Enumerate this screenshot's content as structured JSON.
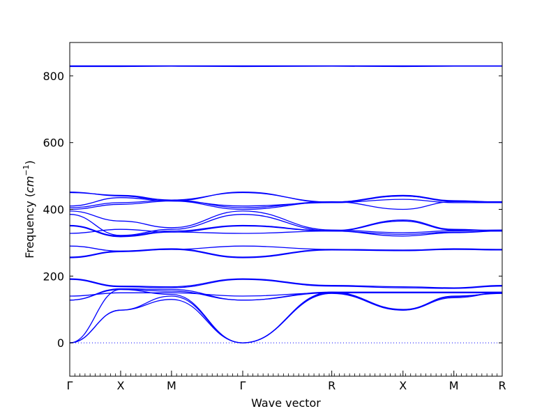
{
  "chart_data": {
    "type": "line",
    "title": "",
    "xlabel": "Wave vector",
    "ylabel": "Frequency (",
    "ylabel_math": "cm",
    "ylabel_exp": "−1",
    "ylabel_close": ")",
    "ylim": [
      -100,
      900
    ],
    "yticks": [
      0,
      200,
      400,
      600,
      800
    ],
    "ytick_labels": [
      "0",
      "200",
      "400",
      "600",
      "800"
    ],
    "xlim": [
      0,
      8.5
    ],
    "high_symmetry_points": [
      {
        "label": "Γ",
        "x": 0
      },
      {
        "label": "X",
        "x": 1
      },
      {
        "label": "M",
        "x": 2
      },
      {
        "label": "Γ",
        "x": 3.4
      },
      {
        "label": "R",
        "x": 5.15
      },
      {
        "label": "X",
        "x": 6.55
      },
      {
        "label": "M",
        "x": 7.55
      },
      {
        "label": "R",
        "x": 8.5
      }
    ],
    "zero_line": {
      "y": 0,
      "style": "dotted"
    },
    "grid": false,
    "series_color": "#0000ff",
    "series": [
      {
        "values": [
          0,
          98,
          140,
          0,
          148,
          98,
          140,
          148
        ]
      },
      {
        "values": [
          0,
          98,
          130,
          0,
          150,
          98,
          135,
          150
        ]
      },
      {
        "values": [
          0,
          160,
          145,
          0,
          152,
          100,
          138,
          150
        ]
      },
      {
        "values": [
          128,
          160,
          155,
          128,
          150,
          150,
          150,
          150
        ]
      },
      {
        "values": [
          128,
          162,
          160,
          128,
          152,
          152,
          152,
          152
        ]
      },
      {
        "values": [
          140,
          150,
          150,
          140,
          150,
          150,
          150,
          150
        ]
      },
      {
        "values": [
          190,
          168,
          165,
          190,
          170,
          165,
          163,
          170
        ]
      },
      {
        "values": [
          192,
          170,
          168,
          192,
          172,
          168,
          165,
          172
        ]
      },
      {
        "values": [
          255,
          273,
          280,
          255,
          278,
          276,
          280,
          278
        ]
      },
      {
        "values": [
          257,
          275,
          282,
          257,
          280,
          277,
          282,
          280
        ]
      },
      {
        "values": [
          290,
          275,
          280,
          290,
          280,
          278,
          280,
          280
        ]
      },
      {
        "values": [
          350,
          318,
          332,
          350,
          335,
          365,
          338,
          335
        ]
      },
      {
        "values": [
          352,
          320,
          335,
          352,
          336,
          368,
          340,
          336
        ]
      },
      {
        "values": [
          328,
          340,
          332,
          328,
          335,
          320,
          330,
          335
        ]
      },
      {
        "values": [
          385,
          322,
          340,
          385,
          335,
          325,
          332,
          335
        ]
      },
      {
        "values": [
          395,
          365,
          345,
          395,
          338,
          330,
          336,
          338
        ]
      },
      {
        "values": [
          400,
          415,
          425,
          400,
          422,
          440,
          425,
          422
        ]
      },
      {
        "values": [
          405,
          420,
          428,
          405,
          423,
          400,
          423,
          423
        ]
      },
      {
        "values": [
          410,
          435,
          425,
          410,
          420,
          430,
          420,
          420
        ]
      },
      {
        "values": [
          450,
          442,
          428,
          450,
          422,
          442,
          426,
          422
        ]
      },
      {
        "values": [
          452,
          440,
          425,
          452,
          420,
          440,
          424,
          420
        ]
      },
      {
        "values": [
          830,
          830,
          830,
          830,
          830,
          830,
          830,
          830
        ]
      },
      {
        "values": [
          828,
          828,
          829,
          828,
          829,
          828,
          829,
          829
        ]
      }
    ]
  }
}
